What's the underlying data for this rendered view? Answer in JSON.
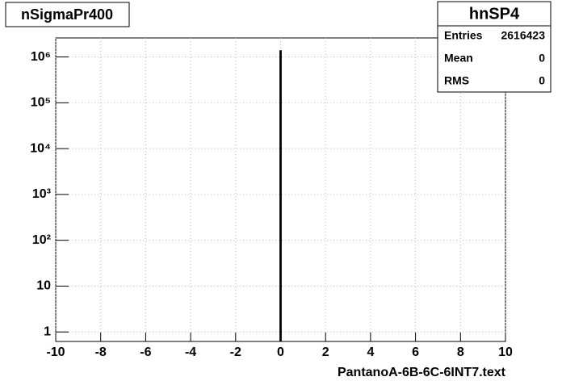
{
  "chart_data": {
    "type": "histogram",
    "title": "nSigmaPr400",
    "x_label": "PantanoA-6B-6C-6INT7.text",
    "bins": [
      -0.05,
      0.05
    ],
    "values": [
      1400000
    ],
    "color": "#000000",
    "xlim": [
      -10,
      10
    ],
    "xticks": [
      -10,
      -8,
      -6,
      -4,
      -2,
      0,
      2,
      4,
      6,
      8,
      10
    ],
    "ylim": [
      0.62,
      2600000
    ],
    "log_y": true,
    "yticks": [
      1,
      10,
      {
        "value": 100,
        "label": "10²"
      },
      {
        "value": 1000,
        "label": "10³"
      },
      {
        "value": 10000,
        "label": "10⁴"
      },
      {
        "value": 100000,
        "label": "10⁵"
      },
      {
        "value": 1000000,
        "label": "10⁶"
      }
    ],
    "grid": true,
    "stats": {
      "name": "hnSP4",
      "rows": [
        [
          "Entries",
          2616423
        ],
        [
          "Mean",
          0
        ],
        [
          "RMS",
          0
        ]
      ]
    }
  }
}
